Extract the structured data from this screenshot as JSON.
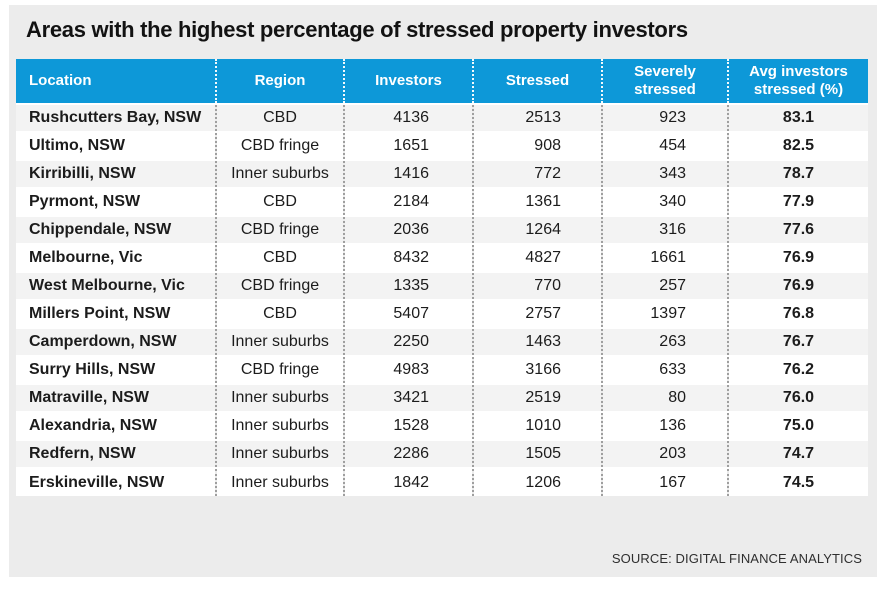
{
  "title": "Areas with the highest percentage of stressed property investors",
  "source": "SOURCE: DIGITAL FINANCE ANALYTICS",
  "colors": {
    "card_bg": "#ececec",
    "header_bg": "#0d98d8",
    "header_text": "#ffffff",
    "row_alt": "#f3f3f3",
    "row_bg": "#ffffff",
    "title_color": "#121212",
    "body_text": "#1c1c1c",
    "source_color": "#2f2f2f"
  },
  "chart_data": {
    "type": "table",
    "title": "Areas with the highest percentage of stressed property investors",
    "columns": [
      "Location",
      "Region",
      "Investors",
      "Stressed",
      "Severely stressed",
      "Avg investors stressed (%)"
    ],
    "rows": [
      [
        "Rushcutters Bay, NSW",
        "CBD",
        "4136",
        "2513",
        "923",
        "83.1"
      ],
      [
        "Ultimo, NSW",
        "CBD fringe",
        "1651",
        "908",
        "454",
        "82.5"
      ],
      [
        "Kirribilli, NSW",
        "Inner suburbs",
        "1416",
        "772",
        "343",
        "78.7"
      ],
      [
        "Pyrmont, NSW",
        "CBD",
        "2184",
        "1361",
        "340",
        "77.9"
      ],
      [
        "Chippendale, NSW",
        "CBD fringe",
        "2036",
        "1264",
        "316",
        "77.6"
      ],
      [
        "Melbourne, Vic",
        "CBD",
        "8432",
        "4827",
        "1661",
        "76.9"
      ],
      [
        "West Melbourne, Vic",
        "CBD fringe",
        "1335",
        "770",
        "257",
        "76.9"
      ],
      [
        "Millers Point, NSW",
        "CBD",
        "5407",
        "2757",
        "1397",
        "76.8"
      ],
      [
        "Camperdown, NSW",
        "Inner suburbs",
        "2250",
        "1463",
        "263",
        "76.7"
      ],
      [
        "Surry Hills, NSW",
        "CBD fringe",
        "4983",
        "3166",
        "633",
        "76.2"
      ],
      [
        "Matraville, NSW",
        "Inner suburbs",
        "3421",
        "2519",
        "80",
        "76.0"
      ],
      [
        "Alexandria, NSW",
        "Inner suburbs",
        "1528",
        "1010",
        "136",
        "75.0"
      ],
      [
        "Redfern, NSW",
        "Inner suburbs",
        "2286",
        "1505",
        "203",
        "74.7"
      ],
      [
        "Erskineville, NSW",
        "Inner suburbs",
        "1842",
        "1206",
        "167",
        "74.5"
      ]
    ]
  }
}
